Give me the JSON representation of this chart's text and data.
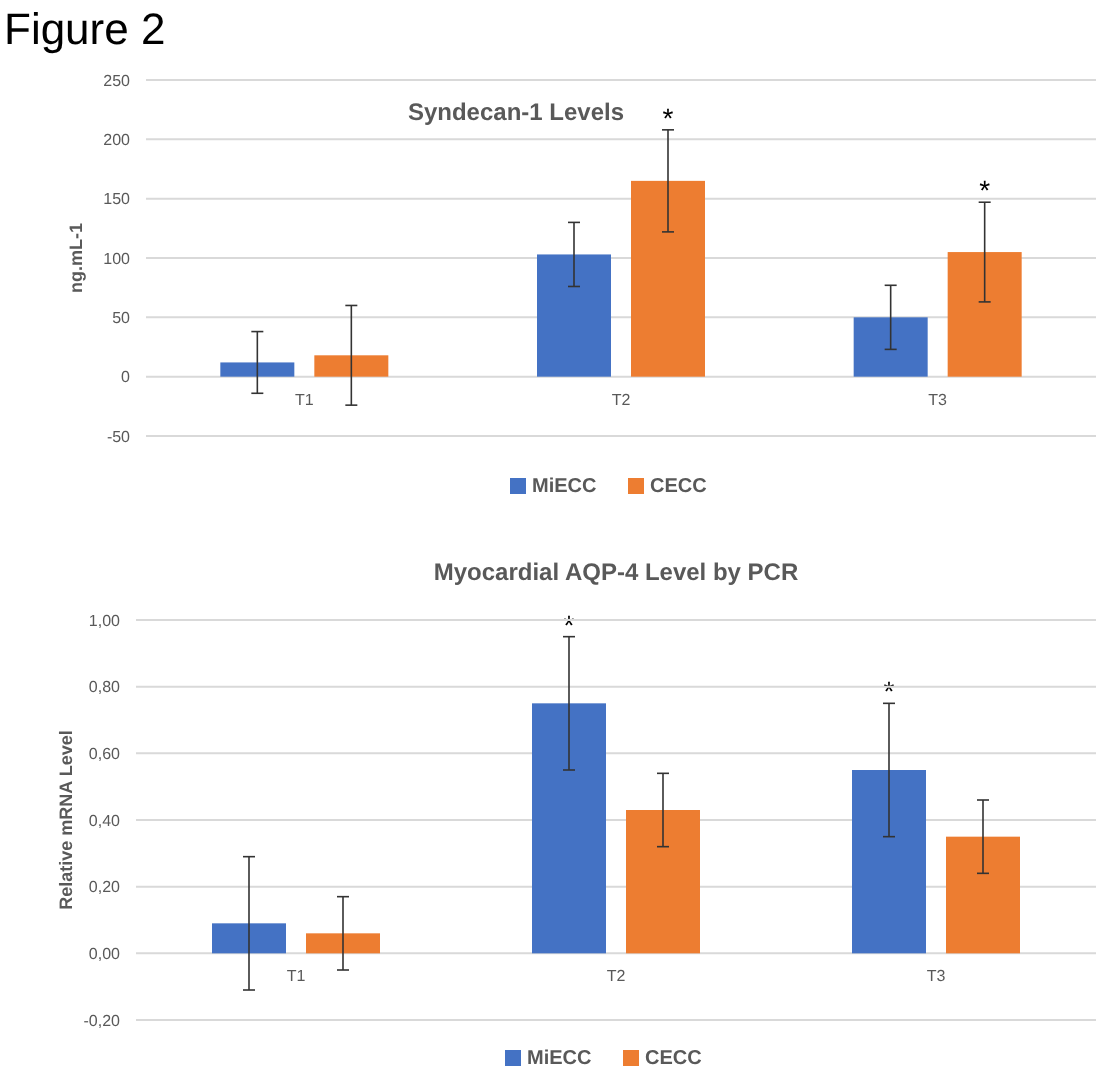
{
  "chart_data": [
    {
      "type": "bar",
      "title": "Syndecan-1 Levels",
      "ylabel": "ng.mL-1",
      "categories": [
        "T1",
        "T2",
        "T3"
      ],
      "series": [
        {
          "name": "MiECC",
          "color": "#4472c4",
          "values": [
            12,
            103,
            50
          ],
          "errors": [
            26,
            27,
            27
          ]
        },
        {
          "name": "CECC",
          "color": "#ed7d31",
          "values": [
            18,
            165,
            105
          ],
          "errors": [
            42,
            43,
            42
          ]
        }
      ],
      "ylim": [
        -50,
        250
      ],
      "yticks": [
        -50,
        0,
        50,
        100,
        150,
        200,
        250
      ],
      "grid": "y",
      "legend": "bottom",
      "annotations": [
        "Figure 2",
        "*",
        "*"
      ]
    },
    {
      "type": "bar",
      "title": "Myocardial AQP-4 Level by PCR",
      "ylabel": "Relative mRNA Level",
      "categories": [
        "T1",
        "T2",
        "T3"
      ],
      "series": [
        {
          "name": "MiECC",
          "color": "#4472c4",
          "values": [
            0.09,
            0.75,
            0.55
          ],
          "errors": [
            0.2,
            0.2,
            0.2
          ]
        },
        {
          "name": "CECC",
          "color": "#ed7d31",
          "values": [
            0.06,
            0.43,
            0.35
          ],
          "errors": [
            0.11,
            0.11,
            0.11
          ]
        }
      ],
      "ylim": [
        -0.2,
        1
      ],
      "yticks": [
        {
          "value": -0.2,
          "label": "-0,20"
        },
        {
          "value": 0,
          "label": "0,00"
        },
        {
          "value": 0.2,
          "label": "0,20"
        },
        {
          "value": 0.4,
          "label": "0,40"
        },
        {
          "value": 0.6,
          "label": "0,60"
        },
        {
          "value": 0.8,
          "label": "0,80"
        },
        {
          "value": 1,
          "label": "1,00"
        }
      ],
      "grid": "y",
      "legend": "bottom",
      "annotations": [
        "*",
        "*"
      ]
    }
  ]
}
